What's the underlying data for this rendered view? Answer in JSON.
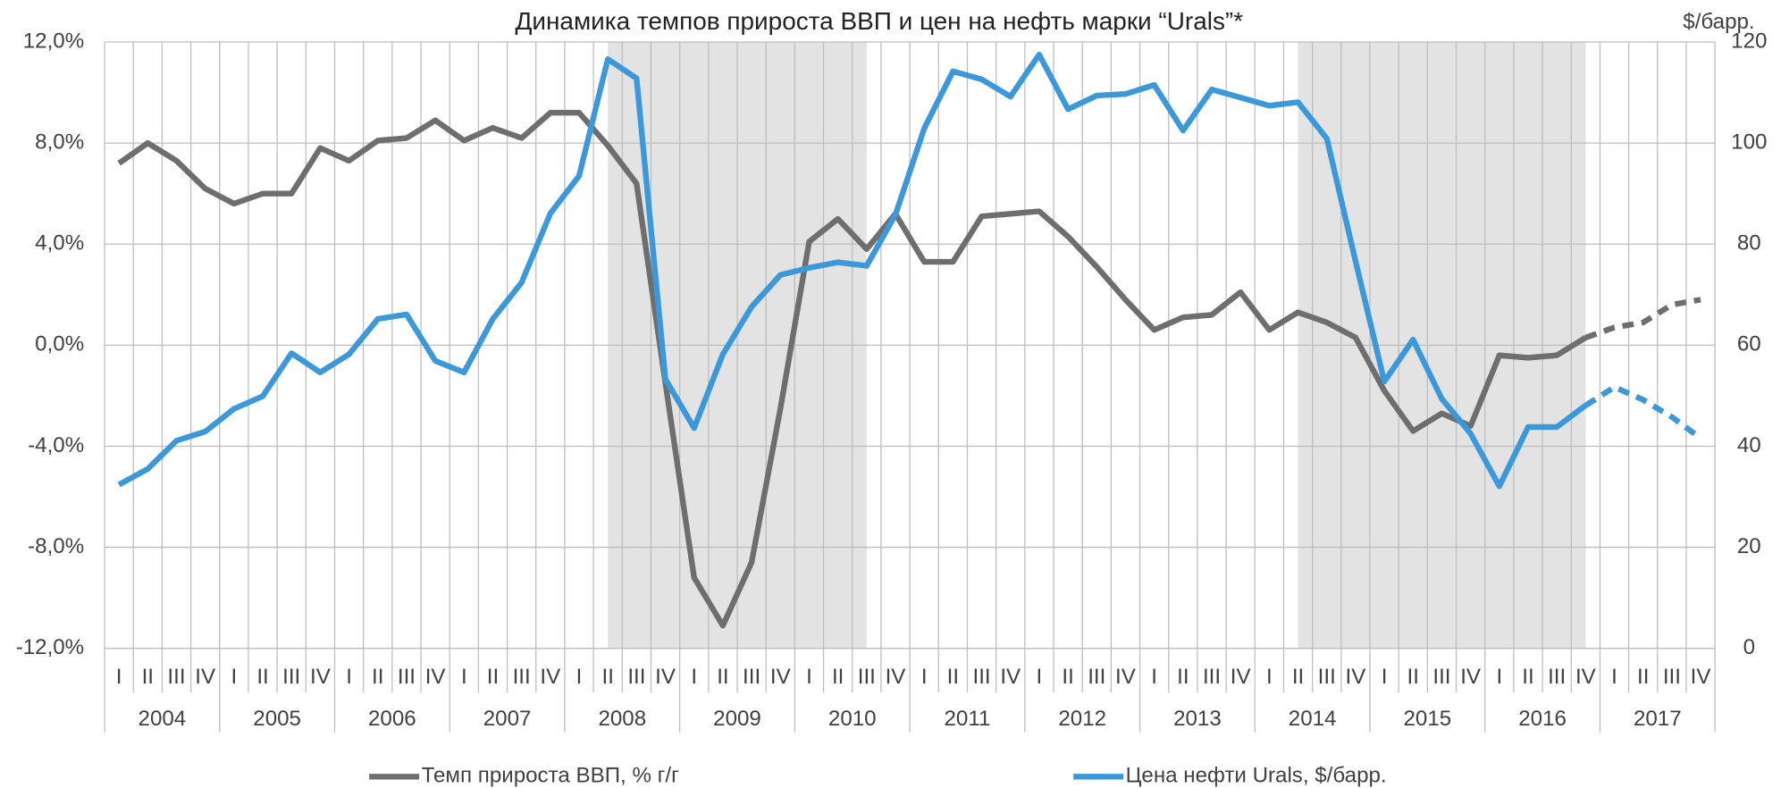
{
  "chart_data": {
    "type": "line",
    "title": "Динамика темпов прироста ВВП и цен на нефть марки “Urals”*",
    "y2_label": "$/барр.",
    "categories": [
      "I",
      "II",
      "III",
      "IV",
      "I",
      "II",
      "III",
      "IV",
      "I",
      "II",
      "III",
      "IV",
      "I",
      "II",
      "III",
      "IV",
      "I",
      "II",
      "III",
      "IV",
      "I",
      "II",
      "III",
      "IV",
      "I",
      "II",
      "III",
      "IV",
      "I",
      "II",
      "III",
      "IV",
      "I",
      "II",
      "III",
      "IV",
      "I",
      "II",
      "III",
      "IV",
      "I",
      "II",
      "III",
      "IV",
      "I",
      "II",
      "III",
      "IV",
      "I",
      "II",
      "III",
      "IV",
      "I",
      "II",
      "III",
      "IV"
    ],
    "years": [
      "2004",
      "2005",
      "2006",
      "2007",
      "2008",
      "2009",
      "2010",
      "2011",
      "2012",
      "2013",
      "2014",
      "2015",
      "2016",
      "2017"
    ],
    "ylim": [
      -12,
      12
    ],
    "yticks": [
      {
        "value": -12,
        "label": "-12,0%"
      },
      {
        "value": -8,
        "label": "-8,0%"
      },
      {
        "value": -4,
        "label": "-4,0%"
      },
      {
        "value": 0,
        "label": "0,0%"
      },
      {
        "value": 4,
        "label": "4,0%"
      },
      {
        "value": 8,
        "label": "8,0%"
      },
      {
        "value": 12,
        "label": "12,0%"
      }
    ],
    "y2lim": [
      0,
      120
    ],
    "y2ticks": [
      0,
      20,
      40,
      60,
      80,
      100,
      120
    ],
    "grid": true,
    "shaded": [
      {
        "from": 17,
        "to": 26
      },
      {
        "from": 41,
        "to": 51
      }
    ],
    "shade_color": "#e3e3e3",
    "legend": "bottom",
    "series": [
      {
        "name": "Темп прироста ВВП, % г/г",
        "color": "#6e6e6e",
        "axis": "y",
        "dash_from": 51,
        "values": [
          7.2,
          8.0,
          7.3,
          6.2,
          5.6,
          6.0,
          6.0,
          7.8,
          7.3,
          8.1,
          8.2,
          8.9,
          8.1,
          8.6,
          8.2,
          9.2,
          9.2,
          7.9,
          6.4,
          -1.5,
          -9.2,
          -11.1,
          -8.6,
          -2.5,
          4.1,
          5.0,
          3.8,
          5.2,
          3.3,
          3.3,
          5.1,
          5.2,
          5.3,
          4.3,
          3.1,
          1.8,
          0.6,
          1.1,
          1.2,
          2.1,
          0.6,
          1.3,
          0.9,
          0.3,
          -1.8,
          -3.4,
          -2.7,
          -3.2,
          -0.4,
          -0.5,
          -0.4,
          0.3,
          0.7,
          0.9,
          1.6,
          1.8
        ]
      },
      {
        "name": "Цена нефти Urals, $/барр.",
        "color": "#3a98db",
        "axis": "y2",
        "dash_from": 51,
        "values": [
          32.4,
          35.5,
          41.1,
          42.9,
          47.4,
          49.9,
          58.4,
          54.6,
          58.2,
          65.2,
          66.1,
          56.9,
          54.6,
          65.2,
          72.4,
          86.1,
          93.5,
          116.6,
          112.8,
          53.3,
          43.6,
          58.2,
          67.6,
          73.9,
          75.3,
          76.4,
          75.7,
          85.8,
          102.9,
          114.2,
          112.6,
          109.2,
          117.5,
          106.7,
          109.4,
          109.7,
          111.5,
          102.5,
          110.6,
          109.0,
          107.4,
          108.1,
          100.9,
          76.6,
          52.8,
          61.1,
          49.4,
          42.5,
          32.1,
          43.8,
          43.8,
          48.1,
          51.7,
          49.2,
          45.8,
          41.6
        ]
      }
    ]
  }
}
